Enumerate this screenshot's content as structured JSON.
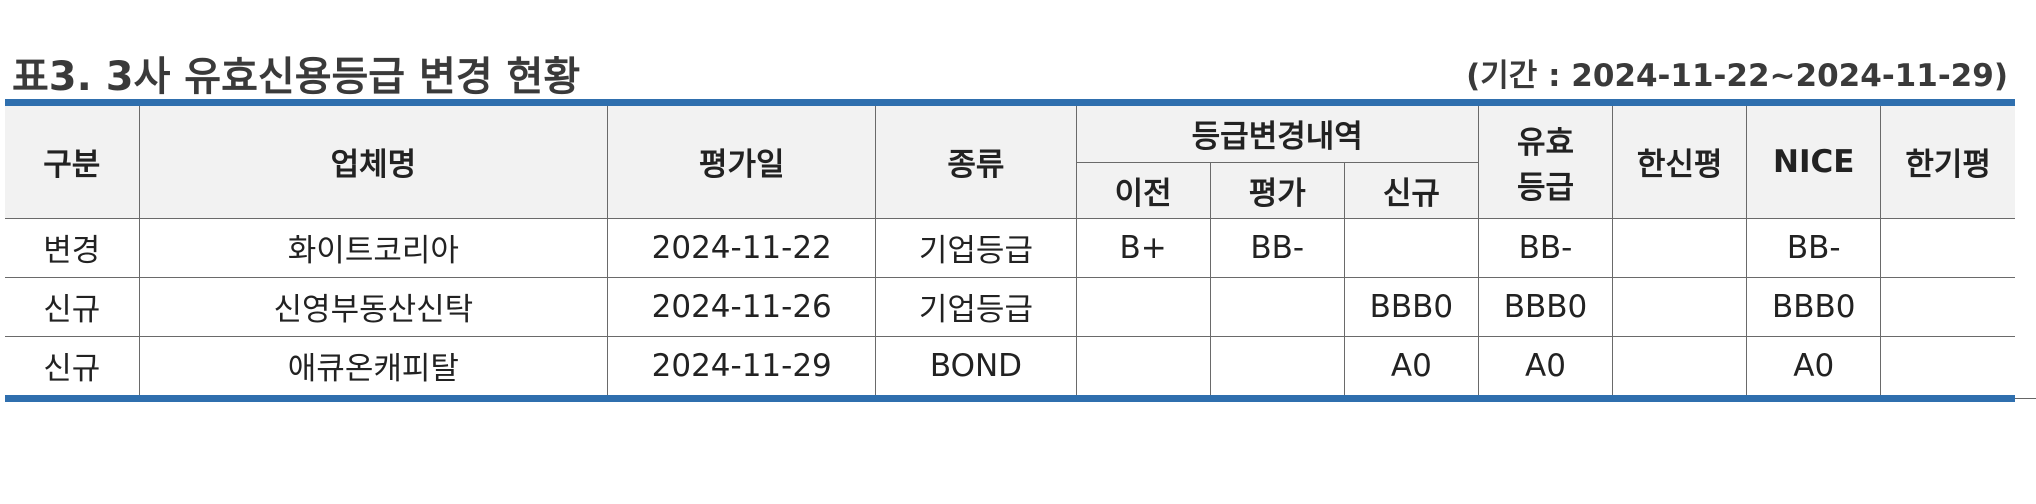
{
  "title": "표3. 3사 유효신용등급 변경 현황",
  "period": "(기간 : 2024-11-22~2024-11-29)",
  "columns": {
    "gubun": "구분",
    "company": "업체명",
    "eval_date": "평가일",
    "kind": "종류",
    "change_history": "등급변경내역",
    "prev": "이전",
    "eval": "평가",
    "new": "신규",
    "valid_line1": "유효",
    "valid_line2": "등급",
    "hanshin": "한신평",
    "nice": "NICE",
    "hangi": "한기평"
  },
  "rows": [
    {
      "gubun": "변경",
      "company": "화이트코리아",
      "eval_date": "2024-11-22",
      "kind": "기업등급",
      "prev": "B+",
      "eval": "BB-",
      "new": "",
      "valid": "BB-",
      "hanshin": "",
      "nice": "BB-",
      "hangi": ""
    },
    {
      "gubun": "신규",
      "company": "신영부동산신탁",
      "eval_date": "2024-11-26",
      "kind": "기업등급",
      "prev": "",
      "eval": "",
      "new": "BBB0",
      "valid": "BBB0",
      "hanshin": "",
      "nice": "BBB0",
      "hangi": ""
    },
    {
      "gubun": "신규",
      "company": "애큐온캐피탈",
      "eval_date": "2024-11-29",
      "kind": "BOND",
      "prev": "",
      "eval": "",
      "new": "A0",
      "valid": "A0",
      "hanshin": "",
      "nice": "A0",
      "hangi": ""
    }
  ]
}
